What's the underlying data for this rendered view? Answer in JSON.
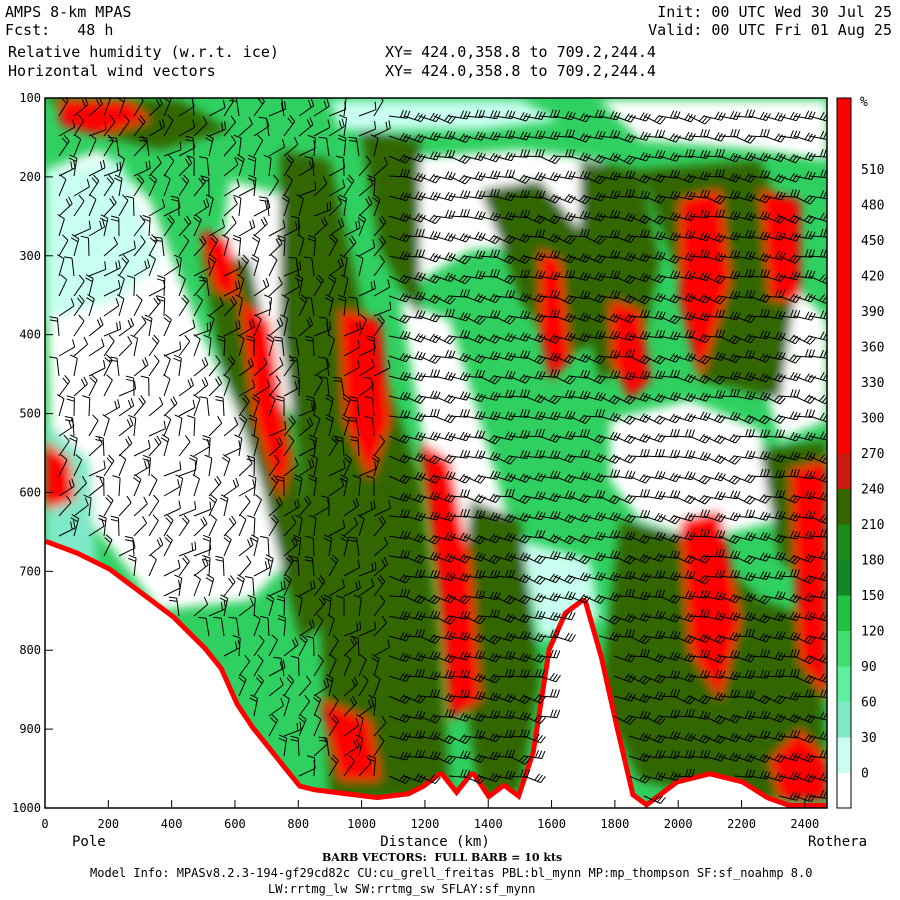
{
  "header": {
    "model": "AMPS 8-km MPAS",
    "fcst": "Fcst:   48 h",
    "field1": "Relative humidity (w.r.t. ice)",
    "field2": "Horizontal wind vectors",
    "xy1": "XY= 424.0,358.8 to 709.2,244.4",
    "xy2": "XY= 424.0,358.8 to 709.2,244.4",
    "init": "Init: 00 UTC Wed 30 Jul 25",
    "valid": "Valid: 00 UTC Fri 01 Aug 25"
  },
  "footer": {
    "barb_note": "BARB VECTORS:  FULL BARB = 10 kts",
    "model_info": "Model Info: MPASv8.2.3-194-gf29cd82c CU:cu_grell_freitas PBL:bl_mynn MP:mp_thompson SF:sf_noahmp 8.0",
    "model_info2": "LW:rrtmg_lw SW:rrtmg_sw SFLAY:sf_mynn"
  },
  "chart_data": {
    "type": "heatmap",
    "xlabel": "Distance (km)",
    "ylabel": "",
    "x_start_label": "Pole",
    "x_end_label": "Rothera",
    "xlim": [
      0,
      2470
    ],
    "ylim": [
      1000,
      100
    ],
    "x_ticks": [
      0,
      200,
      400,
      600,
      800,
      1000,
      1200,
      1400,
      1600,
      1800,
      2000,
      2200,
      2400
    ],
    "y_ticks": [
      100,
      200,
      300,
      400,
      500,
      600,
      700,
      800,
      900,
      1000
    ],
    "colorbar": {
      "unit": "%",
      "labels": [
        "0",
        "30",
        "60",
        "90",
        "120",
        "150",
        "180",
        "210",
        "240",
        "270",
        "300",
        "330",
        "360",
        "390",
        "420",
        "450",
        "480",
        "510"
      ],
      "colors": [
        "#ffffff",
        "#c8fff0",
        "#7fe8c8",
        "#5cf0a0",
        "#40e070",
        "#20c040",
        "#108828",
        "#1a8c1a",
        "#336600",
        "#cc1a10",
        "#ff0000",
        "#ff0000",
        "#ff0000",
        "#ff0000",
        "#ff0000",
        "#ff0000",
        "#ff0000",
        "#ff0000",
        "#ff0000",
        "#ff0000"
      ]
    },
    "terrain_pressure": [
      [
        0,
        665
      ],
      [
        100,
        680
      ],
      [
        200,
        700
      ],
      [
        300,
        730
      ],
      [
        400,
        760
      ],
      [
        500,
        800
      ],
      [
        550,
        825
      ],
      [
        600,
        870
      ],
      [
        650,
        900
      ],
      [
        700,
        925
      ],
      [
        750,
        950
      ],
      [
        800,
        975
      ],
      [
        850,
        980
      ],
      [
        950,
        985
      ],
      [
        1050,
        990
      ],
      [
        1150,
        985
      ],
      [
        1200,
        975
      ],
      [
        1250,
        960
      ],
      [
        1300,
        985
      ],
      [
        1350,
        960
      ],
      [
        1400,
        990
      ],
      [
        1450,
        975
      ],
      [
        1500,
        990
      ],
      [
        1550,
        930
      ],
      [
        1600,
        800
      ],
      [
        1650,
        755
      ],
      [
        1700,
        740
      ],
      [
        1750,
        810
      ],
      [
        1800,
        900
      ],
      [
        1850,
        985
      ],
      [
        1900,
        1000
      ],
      [
        2000,
        970
      ],
      [
        2100,
        960
      ],
      [
        2200,
        970
      ],
      [
        2280,
        990
      ],
      [
        2350,
        1000
      ],
      [
        2470,
        1000
      ]
    ]
  }
}
